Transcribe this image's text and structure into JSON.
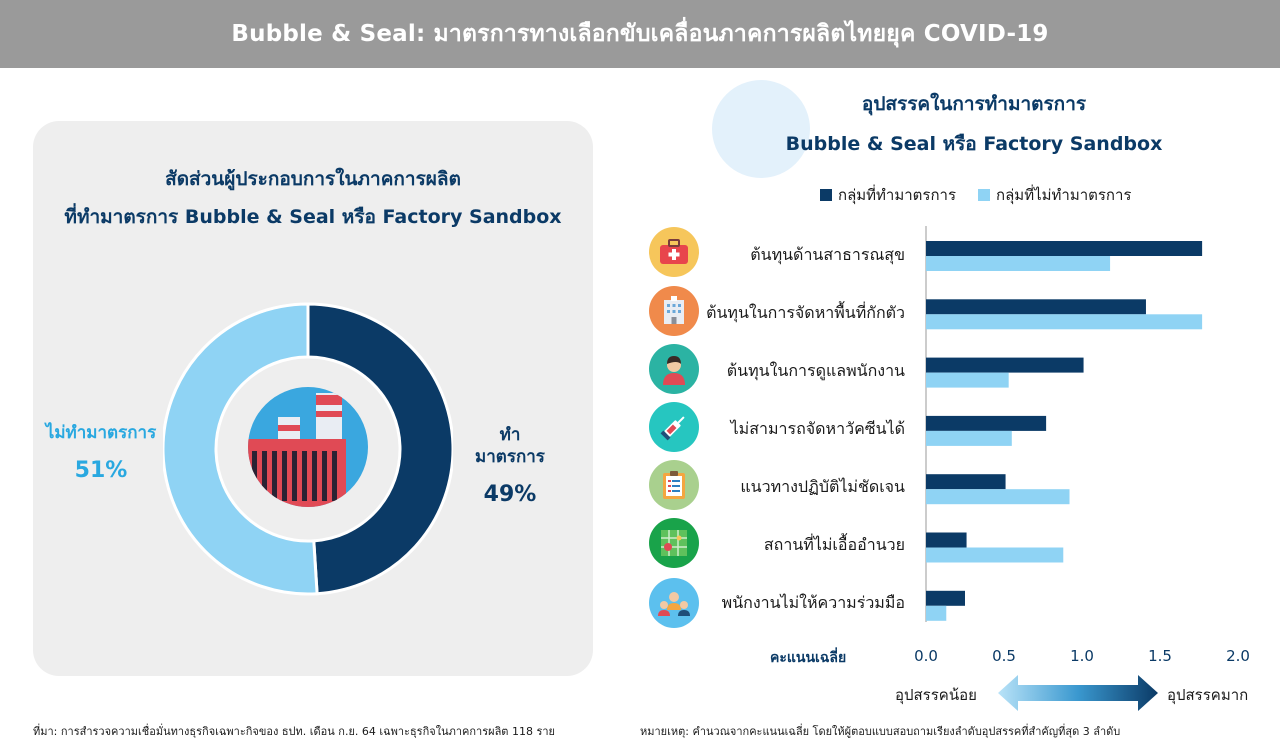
{
  "header": {
    "title": "Bubble & Seal: มาตรการทางเลือกขับเคลื่อนภาคการผลิตไทยยุค COVID-19"
  },
  "left": {
    "title_line1": "สัดส่วนผู้ประกอบการในภาคการผลิต",
    "title_line2": "ที่ทำมาตรการ Bubble & Seal หรือ Factory Sandbox",
    "non_label": "ไม่ทำมาตรการ",
    "non_pct": "51%",
    "do_label": "ทำมาตรการ",
    "do_pct": "49%",
    "source": "ที่มา: การสำรวจความเชื่อมั่นทางธุรกิจเฉพาะกิจของ ธปท. เดือน ก.ย. 64 เฉพาะธุรกิจในภาคการผลิต 118 ราย"
  },
  "right": {
    "title_line1": "อุปสรรคในการทำมาตรการ",
    "title_line2": "Bubble & Seal หรือ Factory Sandbox",
    "axis_unit": "คะแนนเฉลี่ย",
    "arrow_low": "อุปสรรคน้อย",
    "arrow_high": "อุปสรรคมาก",
    "note": "หมายเหตุ: คำนวณจากคะแนนเฉลี่ย โดยให้ผู้ตอบแบบสอบถามเรียงลำดับอุปสรรคที่สำคัญที่สุด 3 ลำดับ"
  },
  "colors": {
    "dark": "#0b3a66",
    "light": "#8fd3f4",
    "accent": "#29a8e0"
  },
  "icons": [
    {
      "name": "first-aid-kit-icon",
      "bg": "#f6c65b"
    },
    {
      "name": "building-icon",
      "bg": "#f08a4b"
    },
    {
      "name": "worker-icon",
      "bg": "#2bb3a3"
    },
    {
      "name": "vaccine-syringe-icon",
      "bg": "#26c6c0"
    },
    {
      "name": "clipboard-guideline-icon",
      "bg": "#a9d08e"
    },
    {
      "name": "map-location-icon",
      "bg": "#19a34a"
    },
    {
      "name": "team-people-icon",
      "bg": "#5cc0ee"
    }
  ],
  "chart_data": [
    {
      "type": "pie",
      "title": "สัดส่วนผู้ประกอบการในภาคการผลิต ที่ทำมาตรการ Bubble & Seal หรือ Factory Sandbox",
      "categories": [
        "ทำมาตรการ",
        "ไม่ทำมาตรการ"
      ],
      "values": [
        49,
        51
      ],
      "colors": [
        "#0b3a66",
        "#8fd3f4"
      ]
    },
    {
      "type": "bar",
      "orientation": "horizontal",
      "title": "อุปสรรคในการทำมาตรการ Bubble & Seal หรือ Factory Sandbox",
      "xlabel": "คะแนนเฉลี่ย",
      "xlim": [
        0,
        2.0
      ],
      "xticks": [
        "0.0",
        "0.5",
        "1.0",
        "1.5",
        "2.0"
      ],
      "categories": [
        "ต้นทุนด้านสาธารณสุข",
        "ต้นทุนในการจัดหาพื้นที่กักตัว",
        "ต้นทุนในการดูแลพนักงาน",
        "ไม่สามารถจัดหาวัคซีนได้",
        "แนวทางปฏิบัติไม่ชัดเจน",
        "สถานที่ไม่เอื้ออำนวย",
        "พนักงานไม่ให้ความร่วมมือ"
      ],
      "series": [
        {
          "name": "กลุ่มที่ทำมาตรการ",
          "color": "#0b3a66",
          "values": [
            1.77,
            1.41,
            1.01,
            0.77,
            0.51,
            0.26,
            0.25
          ]
        },
        {
          "name": "กลุ่มที่ไม่ทำมาตรการ",
          "color": "#8fd3f4",
          "values": [
            1.18,
            1.77,
            0.53,
            0.55,
            0.92,
            0.88,
            0.13
          ]
        }
      ],
      "legend": "top"
    }
  ]
}
